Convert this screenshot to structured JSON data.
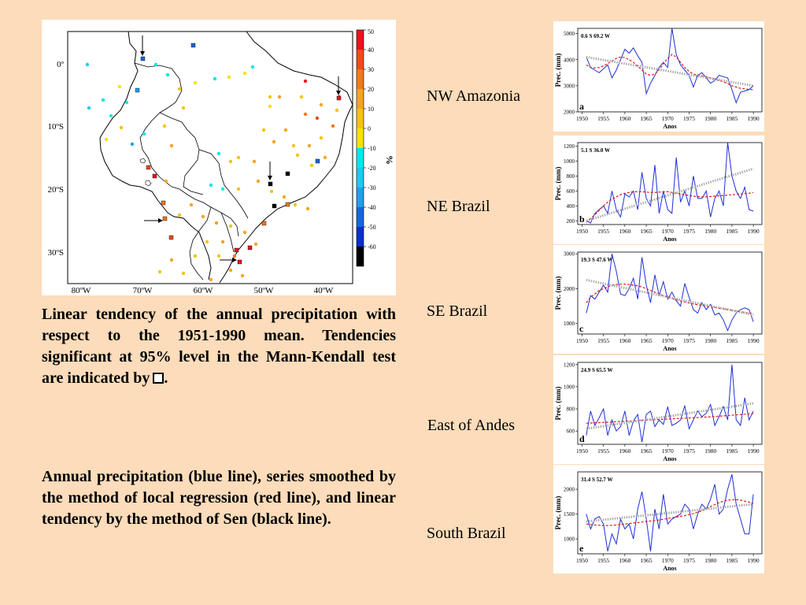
{
  "map": {
    "lat_labels": [
      "0º",
      "10ºS",
      "20ºS",
      "30ºS"
    ],
    "lon_labels": [
      "80ºW",
      "70ºW",
      "60ºW",
      "50ºW",
      "40ºW"
    ],
    "colorbar": {
      "ticks": [
        "50",
        "40",
        "30",
        "20",
        "10",
        "0",
        "-10",
        "-20",
        "-30",
        "-40",
        "-50",
        "-60"
      ],
      "label": "%",
      "colors": [
        "#e8141d",
        "#f04a1a",
        "#f4761c",
        "#f6a323",
        "#f5c313",
        "#f7e10b",
        "#00e8ea",
        "#1ec9f1",
        "#1ea0ec",
        "#1466e0",
        "#0a2fcf",
        "#000000"
      ]
    }
  },
  "text": {
    "paragraph1": "Linear tendency of the annual precipitation with respect to the 1951-1990 mean. Tendencies significant at 95% level in the Mann-Kendall test are indicated by",
    "paragraph1_end": ".",
    "paragraph2": "Annual precipitation (blue line), series smoothed by the method of local regression (red line), and linear tendency by the method of Sen (black line)."
  },
  "regions": [
    "NW Amazonia",
    "NE Brazil",
    "SE Brazil",
    "East of Andes",
    "South Brazil"
  ],
  "chart_data": [
    {
      "type": "line",
      "panel": "a",
      "station": "0.6 S 69.2 W",
      "xlabel": "Anos",
      "ylabel": "Prec. (mm)",
      "ylim": [
        2000,
        5200
      ],
      "yticks": [
        2000,
        3000,
        4000,
        5000
      ],
      "xticks": [
        1950,
        1955,
        1960,
        1965,
        1970,
        1975,
        1980,
        1985,
        1990
      ],
      "x_start": 1951,
      "series": [
        {
          "color": "#1f2fd6",
          "style": "solid",
          "values": [
            4100,
            3700,
            3600,
            3500,
            3650,
            3800,
            3300,
            3600,
            4000,
            4400,
            4250,
            4450,
            4150,
            3900,
            2700,
            3100,
            3400,
            3700,
            3900,
            3700,
            5200,
            4200,
            3800,
            3600,
            3400,
            2950,
            3400,
            3500,
            3300,
            3100,
            3200,
            3400,
            3350,
            3300,
            2850,
            2350,
            2750,
            2800,
            2850,
            3000
          ]
        },
        {
          "color": "#e01a1a",
          "style": "dashed",
          "values": [
            3800,
            3700,
            3680,
            3700,
            3760,
            3850,
            3950,
            4050,
            4100,
            4080,
            4000,
            3900,
            3750,
            3600,
            3450,
            3400,
            3450,
            3600,
            3850,
            4050,
            4200,
            4100,
            3900,
            3700,
            3550,
            3450,
            3400,
            3380,
            3350,
            3300,
            3250,
            3200,
            3150,
            3080,
            3000,
            2950,
            2900,
            2880,
            2860,
            2850
          ]
        },
        {
          "color": "#aaaaaa",
          "style": "dotted",
          "values": [
            4100,
            3000
          ]
        }
      ]
    },
    {
      "type": "line",
      "panel": "b",
      "station": "5.1 S 36.0 W",
      "xlabel": "Anos",
      "ylabel": "Prec. (mm)",
      "ylim": [
        150,
        1250
      ],
      "yticks": [
        200,
        400,
        600,
        800,
        1000,
        1200
      ],
      "xticks": [
        1950,
        1955,
        1960,
        1965,
        1970,
        1975,
        1980,
        1985,
        1990
      ],
      "x_start": 1951,
      "series": [
        {
          "color": "#1f2fd6",
          "style": "solid",
          "values": [
            200,
            170,
            300,
            350,
            400,
            300,
            600,
            350,
            250,
            560,
            520,
            600,
            350,
            850,
            500,
            400,
            950,
            300,
            600,
            350,
            300,
            1050,
            450,
            600,
            400,
            800,
            500,
            500,
            600,
            250,
            500,
            600,
            400,
            1250,
            800,
            600,
            500,
            650,
            350,
            330
          ]
        },
        {
          "color": "#e01a1a",
          "style": "dashed",
          "values": [
            180,
            230,
            280,
            340,
            400,
            450,
            490,
            520,
            550,
            570,
            580,
            590,
            590,
            590,
            585,
            580,
            580,
            585,
            590,
            590,
            580,
            570,
            560,
            550,
            540,
            530,
            525,
            520,
            520,
            525,
            530,
            535,
            540,
            545,
            550,
            555,
            560,
            565,
            570,
            580
          ]
        },
        {
          "color": "#aaaaaa",
          "style": "dotted",
          "values": [
            200,
            900
          ]
        }
      ]
    },
    {
      "type": "line",
      "panel": "c",
      "station": "19.3 S 47.6 W",
      "xlabel": "Anos",
      "ylabel": "Prec. (mm)",
      "ylim": [
        700,
        3050
      ],
      "yticks": [
        1000,
        2000,
        3000
      ],
      "xticks": [
        1950,
        1955,
        1960,
        1965,
        1970,
        1975,
        1980,
        1985,
        1990
      ],
      "x_start": 1951,
      "series": [
        {
          "color": "#1f2fd6",
          "style": "solid",
          "values": [
            1300,
            1800,
            1700,
            1900,
            2100,
            1900,
            3000,
            2500,
            1850,
            1800,
            2000,
            2300,
            1700,
            2900,
            2100,
            1600,
            2400,
            1800,
            2200,
            1700,
            1900,
            1650,
            1500,
            2150,
            1750,
            1400,
            1300,
            1600,
            1400,
            1550,
            1250,
            1300,
            1100,
            800,
            1100,
            1300,
            1400,
            1450,
            1400,
            1050
          ]
        },
        {
          "color": "#e01a1a",
          "style": "dashed",
          "values": [
            1600,
            1750,
            1850,
            1950,
            2000,
            2050,
            2100,
            2120,
            2130,
            2130,
            2120,
            2100,
            2080,
            2050,
            2000,
            1950,
            1900,
            1850,
            1800,
            1760,
            1720,
            1680,
            1650,
            1620,
            1590,
            1560,
            1540,
            1520,
            1500,
            1480,
            1460,
            1440,
            1420,
            1400,
            1380,
            1360,
            1340,
            1320,
            1300,
            1280
          ]
        },
        {
          "color": "#aaaaaa",
          "style": "dotted",
          "values": [
            2250,
            1250
          ]
        }
      ]
    },
    {
      "type": "line",
      "panel": "d",
      "station": "24.9 S 65.5 W",
      "xlabel": "Anos",
      "ylabel": "Prec. (mm)",
      "ylim": [
        480,
        1220
      ],
      "yticks": [
        600,
        800,
        1000,
        1200
      ],
      "xticks": [
        1950,
        1955,
        1960,
        1965,
        1970,
        1975,
        1980,
        1985,
        1990
      ],
      "x_start": 1951,
      "series": [
        {
          "color": "#1f2fd6",
          "style": "solid",
          "values": [
            560,
            780,
            650,
            720,
            800,
            560,
            700,
            600,
            640,
            780,
            560,
            690,
            750,
            500,
            750,
            780,
            640,
            700,
            660,
            820,
            650,
            670,
            700,
            830,
            620,
            700,
            780,
            730,
            760,
            840,
            650,
            730,
            820,
            700,
            1200,
            700,
            650,
            900,
            700,
            780
          ]
        },
        {
          "color": "#e01a1a",
          "style": "dashed",
          "values": [
            670,
            672,
            674,
            676,
            678,
            680,
            682,
            684,
            686,
            688,
            690,
            692,
            694,
            696,
            698,
            700,
            702,
            704,
            706,
            708,
            710,
            712,
            714,
            716,
            718,
            720,
            722,
            724,
            726,
            728,
            731,
            734,
            737,
            740,
            743,
            746,
            749,
            752,
            755,
            758
          ]
        },
        {
          "color": "#aaaaaa",
          "style": "dotted",
          "values": [
            620,
            850
          ]
        }
      ]
    },
    {
      "type": "line",
      "panel": "e",
      "station": "31.4 S 52.7 W",
      "xlabel": "Anos",
      "ylabel": "Prec. (mm)",
      "ylim": [
        700,
        2350
      ],
      "yticks": [
        1000,
        1500,
        2000
      ],
      "xticks": [
        1950,
        1955,
        1960,
        1965,
        1970,
        1975,
        1980,
        1985,
        1990
      ],
      "x_start": 1951,
      "series": [
        {
          "color": "#1f2fd6",
          "style": "solid",
          "values": [
            1500,
            1200,
            1400,
            1450,
            1300,
            750,
            1100,
            900,
            1400,
            1200,
            1300,
            1000,
            1600,
            1950,
            1400,
            750,
            1600,
            1200,
            1900,
            1300,
            1400,
            1450,
            1500,
            1700,
            1600,
            1200,
            1500,
            1700,
            1600,
            1800,
            2100,
            1500,
            1600,
            2000,
            2300,
            1700,
            1400,
            1100,
            1100,
            1900
          ]
        },
        {
          "color": "#e01a1a",
          "style": "dashed",
          "values": [
            1300,
            1290,
            1280,
            1275,
            1270,
            1270,
            1275,
            1280,
            1290,
            1300,
            1310,
            1320,
            1330,
            1340,
            1350,
            1360,
            1370,
            1380,
            1395,
            1410,
            1425,
            1440,
            1455,
            1470,
            1490,
            1510,
            1540,
            1570,
            1610,
            1650,
            1690,
            1730,
            1760,
            1780,
            1790,
            1790,
            1780,
            1760,
            1740,
            1720
          ]
        },
        {
          "color": "#aaaaaa",
          "style": "dotted",
          "values": [
            1350,
            1700
          ]
        }
      ]
    }
  ]
}
